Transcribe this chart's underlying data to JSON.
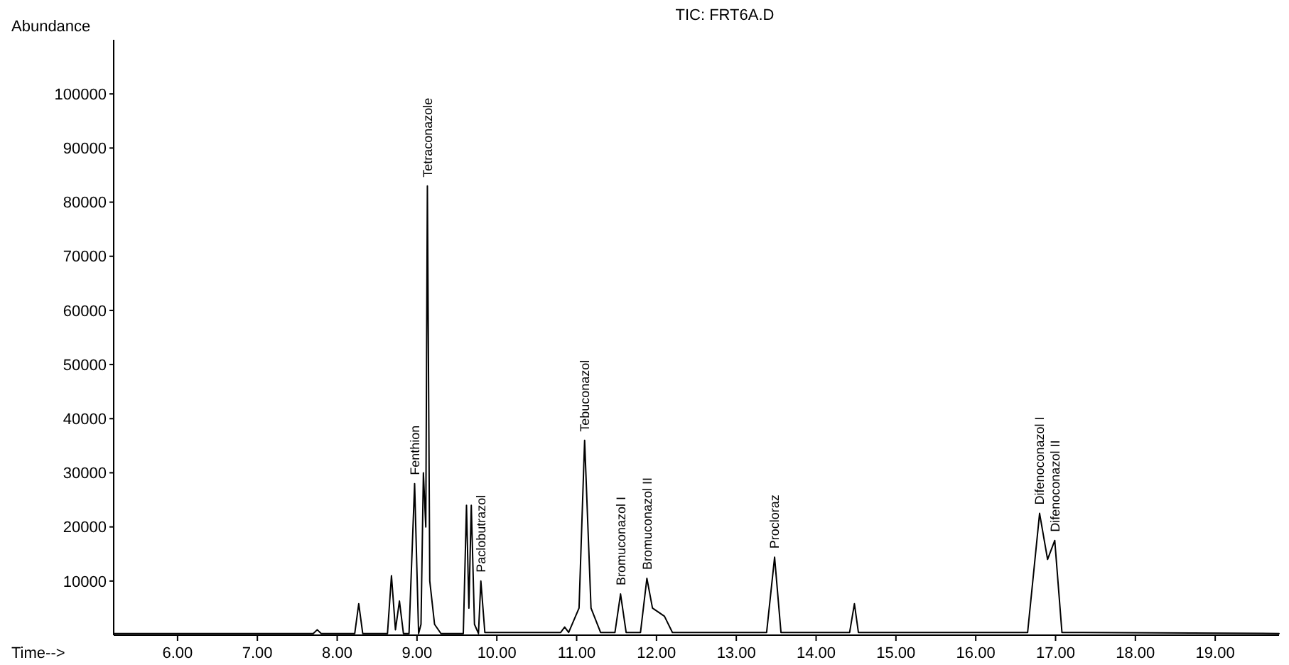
{
  "chart_data": {
    "type": "line",
    "title": "TIC: FRT6A.D",
    "xlabel": "Time-->",
    "ylabel": "Abundance",
    "x": [
      5.2,
      7.7,
      7.75,
      7.8,
      8.22,
      8.27,
      8.32,
      8.63,
      8.68,
      8.73,
      8.78,
      8.83,
      8.9,
      8.97,
      9.02,
      9.05,
      9.08,
      9.11,
      9.13,
      9.16,
      9.22,
      9.3,
      9.58,
      9.62,
      9.65,
      9.68,
      9.72,
      9.77,
      9.8,
      9.85,
      10.8,
      10.85,
      10.9,
      11.03,
      11.1,
      11.18,
      11.3,
      11.48,
      11.55,
      11.62,
      11.8,
      11.88,
      11.95,
      12.1,
      12.2,
      13.38,
      13.48,
      13.56,
      14.42,
      14.48,
      14.53,
      16.65,
      16.8,
      16.9,
      16.99,
      17.08,
      19.8
    ],
    "series": [
      {
        "color": "#000000",
        "values": [
          300,
          300,
          1000,
          300,
          300,
          5800,
          300,
          300,
          11000,
          1000,
          6300,
          300,
          300,
          28000,
          300,
          2000,
          30000,
          20000,
          83000,
          10000,
          2000,
          300,
          300,
          24000,
          5000,
          24000,
          2000,
          300,
          10000,
          500,
          500,
          1500,
          500,
          5000,
          36000,
          5000,
          500,
          500,
          7600,
          500,
          500,
          10500,
          5000,
          3500,
          500,
          500,
          14400,
          500,
          500,
          5800,
          500,
          500,
          22500,
          14000,
          17500,
          500,
          300
        ]
      }
    ],
    "xlim": [
      5.2,
      19.8
    ],
    "ylim": [
      0,
      110000
    ],
    "xticks": [
      {
        "value": 6,
        "label": "6.00"
      },
      {
        "value": 7,
        "label": "7.00"
      },
      {
        "value": 8,
        "label": "8.00"
      },
      {
        "value": 9,
        "label": "9.00"
      },
      {
        "value": 10,
        "label": "10.00"
      },
      {
        "value": 11,
        "label": "11.00"
      },
      {
        "value": 12,
        "label": "12.00"
      },
      {
        "value": 13,
        "label": "13.00"
      },
      {
        "value": 14,
        "label": "14.00"
      },
      {
        "value": 15,
        "label": "15.00"
      },
      {
        "value": 16,
        "label": "16.00"
      },
      {
        "value": 17,
        "label": "17.00"
      },
      {
        "value": 18,
        "label": "18.00"
      },
      {
        "value": 19,
        "label": "19.00"
      }
    ],
    "yticks": [
      10000,
      20000,
      30000,
      40000,
      50000,
      60000,
      70000,
      80000,
      90000,
      100000
    ],
    "annotations": [
      {
        "text": "Fenthion",
        "x": 8.97,
        "y": 28000
      },
      {
        "text": "Tetraconazole",
        "x": 9.13,
        "y": 83000
      },
      {
        "text": "Paclobutrazol",
        "x": 9.8,
        "y": 10000
      },
      {
        "text": "Tebuconazol",
        "x": 11.1,
        "y": 36000
      },
      {
        "text": "Bromuconazol I",
        "x": 11.55,
        "y": 7600
      },
      {
        "text": "Bromuconazol II",
        "x": 11.88,
        "y": 10500
      },
      {
        "text": "Procloraz",
        "x": 13.48,
        "y": 14400
      },
      {
        "text": "Difenoconazol I",
        "x": 16.8,
        "y": 22500
      },
      {
        "text": "Difenoconazol II",
        "x": 16.99,
        "y": 17500
      }
    ],
    "grid": false,
    "line_style": "solid",
    "marker": "none"
  }
}
